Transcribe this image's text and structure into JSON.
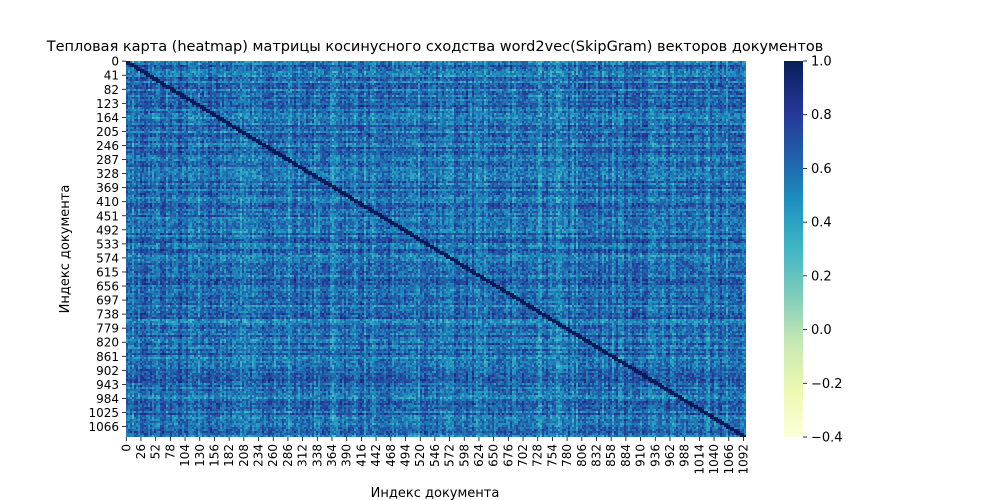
{
  "chart_data": {
    "type": "heatmap",
    "title": "Тепловая карта (heatmap) матрицы косинусного сходства word2vec(SkipGram) векторов документов",
    "xlabel": "Индекс документа",
    "ylabel": "Индекс документа",
    "x_range": [
      0,
      1096
    ],
    "y_range": [
      0,
      1096
    ],
    "x_ticks": [
      0,
      26,
      52,
      78,
      104,
      130,
      156,
      182,
      208,
      234,
      260,
      286,
      312,
      338,
      364,
      390,
      416,
      442,
      468,
      494,
      520,
      546,
      572,
      598,
      624,
      650,
      676,
      702,
      728,
      754,
      780,
      806,
      832,
      858,
      884,
      910,
      936,
      962,
      988,
      1014,
      1040,
      1066,
      1092
    ],
    "y_ticks": [
      0,
      41,
      82,
      123,
      164,
      205,
      246,
      287,
      328,
      369,
      410,
      451,
      492,
      533,
      574,
      615,
      656,
      697,
      738,
      779,
      820,
      861,
      902,
      943,
      984,
      1025,
      1066
    ],
    "colorbar": {
      "range": [
        -0.4,
        1.0
      ],
      "ticks": [
        "1.0",
        "0.8",
        "0.6",
        "0.4",
        "0.2",
        "0.0",
        "−0.2",
        "−0.4"
      ],
      "tick_values": [
        1.0,
        0.8,
        0.6,
        0.4,
        0.2,
        0.0,
        -0.2,
        -0.4
      ],
      "colormap": "YlGnBu",
      "colors": [
        "#ffffd9",
        "#edf8b1",
        "#c7e9b4",
        "#7fcdbb",
        "#41b6c4",
        "#1d91c0",
        "#225ea8",
        "#253494",
        "#081d58"
      ]
    },
    "grid": false,
    "legend": "none"
  }
}
